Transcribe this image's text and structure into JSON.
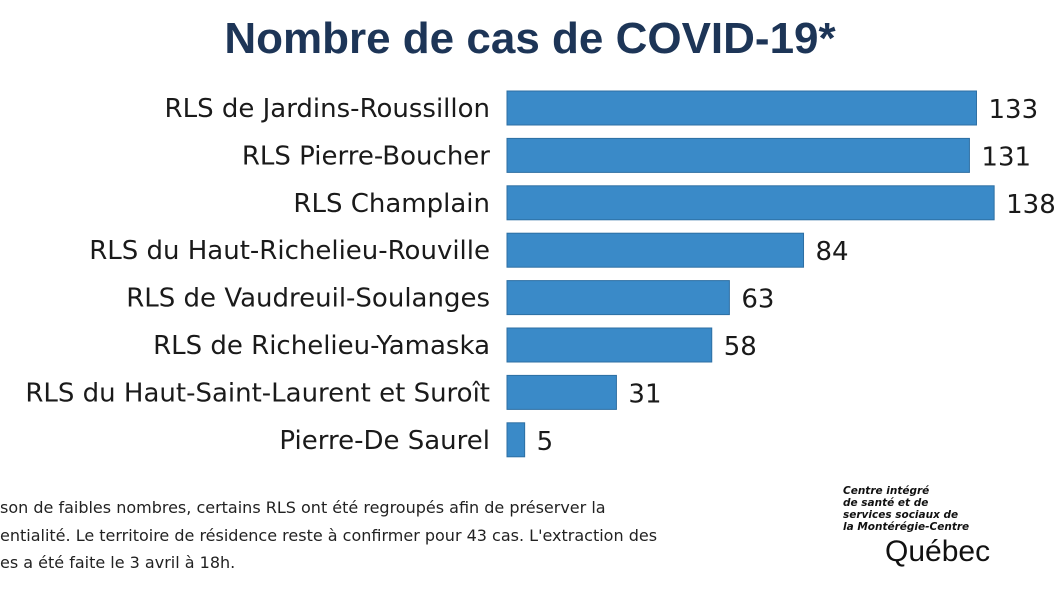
{
  "chart_data": {
    "type": "bar",
    "orientation": "horizontal",
    "title": "Nombre de cas de COVID-19*",
    "categories": [
      "RLS de Jardins-Roussillon",
      "RLS Pierre-Boucher",
      "RLS Champlain",
      "RLS du Haut-Richelieu-Rouville",
      "RLS de Vaudreuil-Soulanges",
      "RLS de Richelieu-Yamaska",
      "RLS du Haut-Saint-Laurent et Suroît",
      "Pierre-De Saurel"
    ],
    "values": [
      133,
      131,
      138,
      84,
      63,
      58,
      31,
      5
    ],
    "xlim": [
      0,
      140
    ],
    "grid": false,
    "bar_color": "#3a8ac8"
  },
  "footnote": [
    "son de faibles nombres, certains RLS ont été regroupés afin de préserver la",
    "entialité. Le territoire de résidence reste à confirmer pour 43 cas.  L'extraction des",
    "es a été faite le 3 avril à 18h."
  ],
  "logo": {
    "lines": [
      "Centre intégré",
      "de santé et de",
      "services sociaux de",
      "la Montérégie-Centre"
    ],
    "brand": "Québec"
  }
}
